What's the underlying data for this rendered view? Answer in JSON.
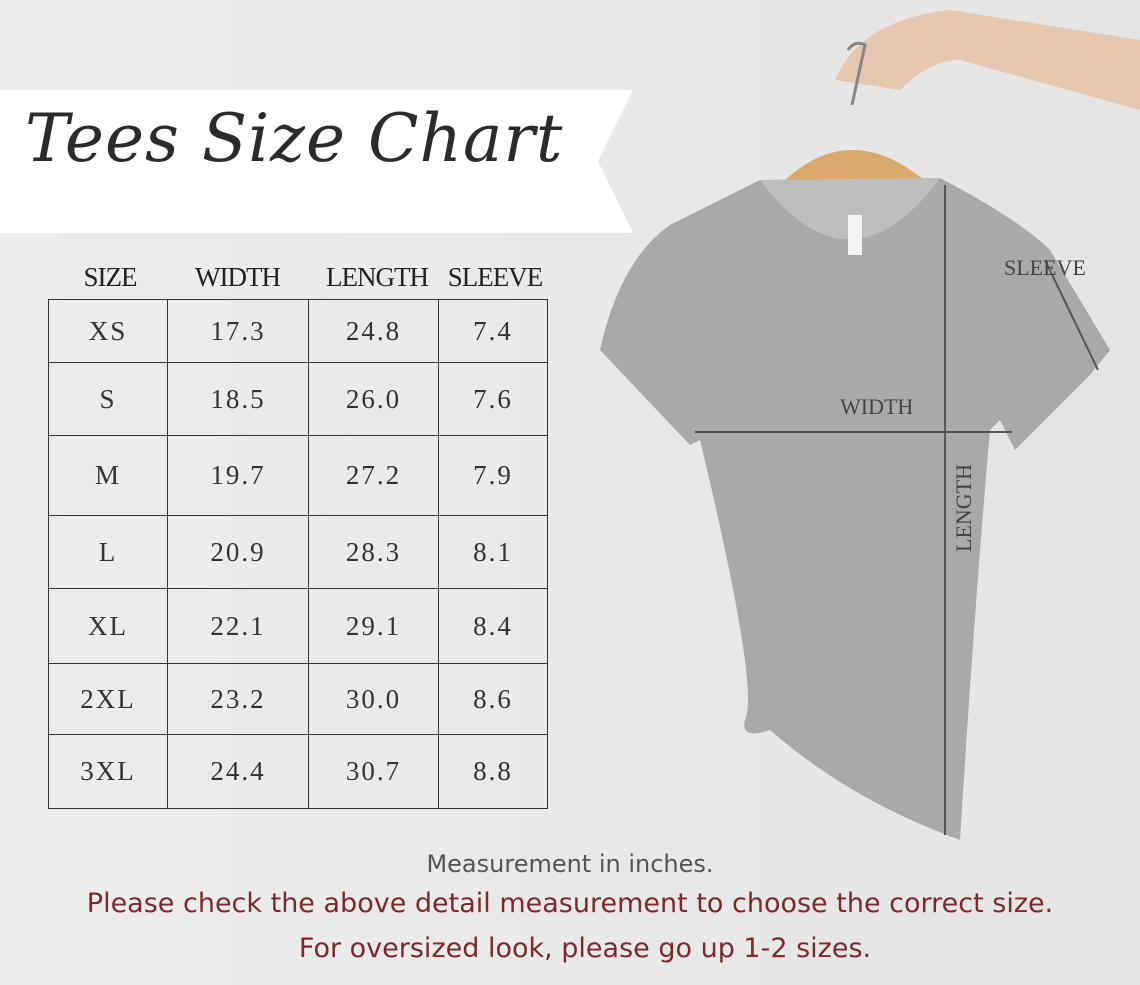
{
  "title": "Tees Size Chart",
  "columns": [
    "SIZE",
    "WIDTH",
    "LENGTH",
    "SLEEVE"
  ],
  "rows": [
    [
      "XS",
      "17.3",
      "24.8",
      "7.4"
    ],
    [
      "S",
      "18.5",
      "26.0",
      "7.6"
    ],
    [
      "M",
      "19.7",
      "27.2",
      "7.9"
    ],
    [
      "L",
      "20.9",
      "28.3",
      "8.1"
    ],
    [
      "XL",
      "22.1",
      "29.1",
      "8.4"
    ],
    [
      "2XL",
      "23.2",
      "30.0",
      "8.6"
    ],
    [
      "3XL",
      "24.4",
      "30.7",
      "8.8"
    ]
  ],
  "diagram": {
    "sleeve": "SLEEVE",
    "width": "WIDTH",
    "length": "LENGTH"
  },
  "notes": {
    "unit": "Measurement in inches.",
    "check": "Please check the above detail measurement to choose the correct size.",
    "oversized": "For oversized look,  please go up 1-2 sizes."
  },
  "colors": {
    "note_gray": "#555555",
    "note_red": "#7a2a2a",
    "shirt": "#a9a9a9"
  }
}
